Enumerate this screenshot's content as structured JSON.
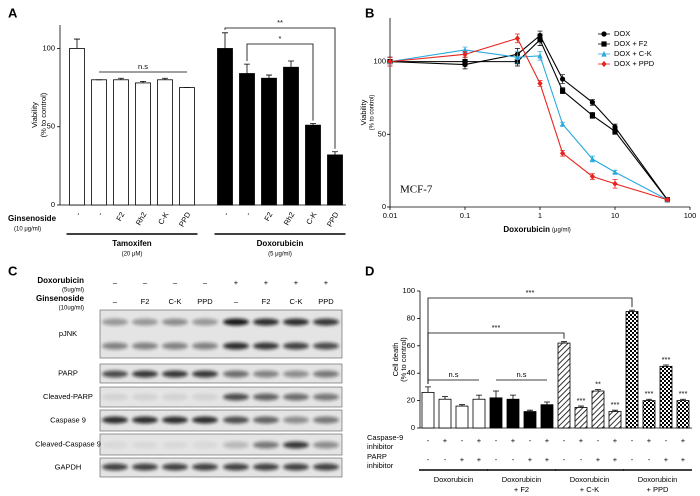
{
  "chart_data": [
    {
      "type": "bar",
      "panel": "A",
      "ylabel": [
        "Viability",
        "(% to control)"
      ],
      "ylim": [
        0,
        115
      ],
      "yticks": [
        0,
        50,
        100
      ],
      "row_label": [
        "Ginsenoside",
        "(10 μg/ml)"
      ],
      "groups": [
        {
          "name_lines": [
            "Tamoxifen",
            "(20 μM)"
          ],
          "color": "#ffffff",
          "text_color": "#000000",
          "categories": [
            "-",
            "-",
            "F2",
            "Rh2",
            "C-K",
            "PPD"
          ],
          "values": [
            100,
            80,
            80,
            78,
            80,
            75
          ],
          "errors": [
            6,
            0,
            1,
            1,
            1,
            0
          ]
        },
        {
          "name_lines": [
            "Doxorubicin",
            "(5 μg/ml)"
          ],
          "color": "#000000",
          "text_color": "#e8231e",
          "categories": [
            "-",
            "-",
            "F2",
            "Rh2",
            "C-K",
            "PPD"
          ],
          "values": [
            100,
            84,
            81,
            88,
            51,
            32
          ],
          "errors": [
            10,
            6,
            2,
            4,
            1,
            2
          ]
        }
      ],
      "annotations": [
        "n.s",
        "*",
        "**"
      ]
    },
    {
      "type": "line",
      "panel": "B",
      "x": [
        0.01,
        0.1,
        0.5,
        1,
        2,
        5,
        10,
        50
      ],
      "log_x": true,
      "xlim": [
        0.01,
        100
      ],
      "xticks": [
        0.01,
        0.1,
        1,
        10,
        100
      ],
      "ylim": [
        0,
        130
      ],
      "yticks": [
        0,
        50,
        100
      ],
      "xlabel": "Doxorubicin",
      "xlabel_unit": "(μg/ml)",
      "ylabel": [
        "Viability",
        "(% to control)"
      ],
      "annotation": "MCF-7",
      "legend": "upper right",
      "series": [
        {
          "name": "DOX",
          "color": "#000000",
          "marker": "circle",
          "values": [
            100,
            98,
            105,
            118,
            88,
            72,
            55,
            5
          ],
          "errors": [
            3,
            3,
            4,
            3,
            3,
            2,
            2,
            1
          ]
        },
        {
          "name": "DOX + F2",
          "color": "#000000",
          "marker": "square",
          "values": [
            100,
            100,
            100,
            115,
            80,
            63,
            52,
            5
          ],
          "errors": [
            3,
            3,
            3,
            4,
            2,
            2,
            2,
            1
          ]
        },
        {
          "name": "DOX + C-K",
          "color": "#29a9dc",
          "marker": "triangle",
          "values": [
            100,
            108,
            103,
            104,
            57,
            33,
            24,
            5
          ],
          "errors": [
            3,
            2,
            4,
            3,
            1,
            2,
            1,
            1
          ]
        },
        {
          "name": "DOX + PPD",
          "color": "#e8231e",
          "marker": "diamond",
          "values": [
            100,
            105,
            116,
            85,
            37,
            21,
            16,
            5
          ],
          "errors": [
            3,
            2,
            3,
            2,
            2,
            2,
            3,
            1
          ]
        }
      ]
    },
    {
      "type": "bar",
      "panel": "D",
      "ylabel": [
        "Cell death",
        "(% to control)"
      ],
      "ylim": [
        0,
        100
      ],
      "yticks": [
        0,
        20,
        40,
        60,
        80,
        100
      ],
      "groups": [
        {
          "name_lines": [
            "Doxorubicin"
          ],
          "color": "#ffffff",
          "values": [
            26,
            21,
            16,
            21
          ],
          "errors": [
            4,
            2,
            1,
            3
          ]
        },
        {
          "name_lines": [
            "Doxorubicin",
            "+ F2"
          ],
          "color": "#000000",
          "values": [
            22,
            21,
            12,
            17
          ],
          "errors": [
            5,
            3,
            1,
            2
          ]
        },
        {
          "name_lines": [
            "Doxorubicin",
            "+ C-K"
          ],
          "pattern": "hatch",
          "values": [
            62,
            15,
            27,
            12
          ],
          "errors": [
            1,
            1,
            1,
            1
          ],
          "significance": [
            null,
            "***",
            "**",
            "***"
          ]
        },
        {
          "name_lines": [
            "Doxorubicin",
            "+ PPD"
          ],
          "pattern": "checker",
          "values": [
            85,
            20,
            45,
            20
          ],
          "errors": [
            1,
            1,
            1,
            1
          ],
          "significance": [
            null,
            "***",
            "***",
            "***"
          ]
        }
      ],
      "rows": [
        {
          "label": [
            "Caspase-9",
            "inhibitor"
          ],
          "signs": [
            "-",
            "+",
            "-",
            "+",
            "-",
            "+",
            "-",
            "+",
            "-",
            "+",
            "-",
            "+",
            "-",
            "+",
            "-",
            "+"
          ]
        },
        {
          "label": [
            "PARP",
            "inhibitor"
          ],
          "signs": [
            "-",
            "-",
            "+",
            "+",
            "-",
            "-",
            "+",
            "+",
            "-",
            "-",
            "+",
            "+",
            "-",
            "-",
            "+",
            "+"
          ]
        }
      ],
      "annotations": [
        "***",
        "***",
        "n.s",
        "n.s"
      ]
    }
  ],
  "blot": {
    "panel": "C",
    "treatments": [
      {
        "label": "Doxorubicin",
        "unit": "(5ug/ml)",
        "lanes": [
          "–",
          "–",
          "–",
          "–",
          "+",
          "+",
          "+",
          "+"
        ]
      },
      {
        "label": "Ginsenoside",
        "unit": "(10ug/ml)",
        "lanes": [
          "–",
          "F2",
          "C-K",
          "PPD",
          "–",
          "F2",
          "C-K",
          "PPD"
        ]
      }
    ],
    "bands": [
      "pJNK",
      "PARP",
      "Cleaved-PARP",
      "Caspase 9",
      "Cleaved-Caspase 9",
      "GAPDH"
    ]
  }
}
